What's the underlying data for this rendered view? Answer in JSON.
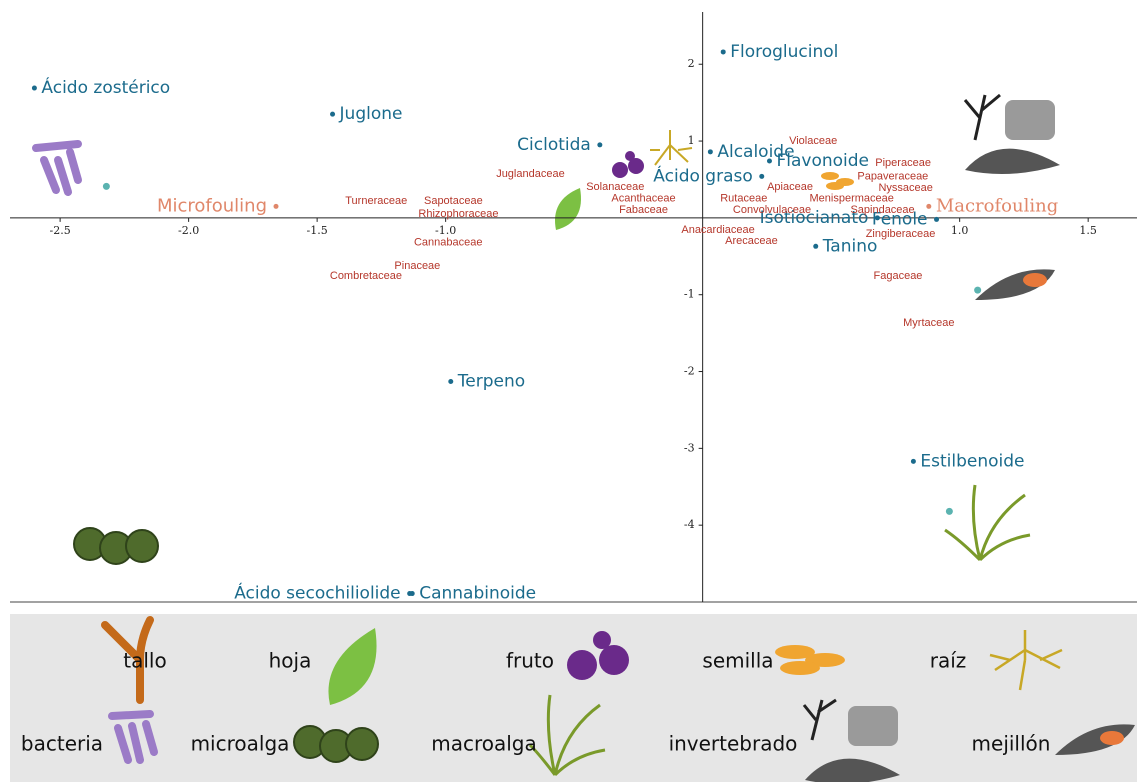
{
  "chart_data": {
    "type": "scatter",
    "xlim": [
      -2.695,
      1.69
    ],
    "ylim": [
      -5.0,
      2.68
    ],
    "xticks": [
      {
        "value": -2.5,
        "label": "-2.5"
      },
      {
        "value": -2,
        "label": "-2.0"
      },
      {
        "value": -1.5,
        "label": "-1.5"
      },
      {
        "value": -1,
        "label": "-1.0"
      },
      {
        "value": 1,
        "label": "1.0"
      },
      {
        "value": 1.5,
        "label": "1.5"
      }
    ],
    "yticks": [
      2,
      1,
      -1,
      -2,
      -3,
      -4
    ],
    "series": [
      {
        "color": "#1b6b8c",
        "labels": [
          "Ácido zostérico",
          "Floroglucinol",
          "Juglone",
          "Ciclotida",
          "Alcaloide",
          "Flavonoide",
          "Ácido graso",
          "Isotiocianato",
          "Fenole",
          "Tanino",
          "Terpeno",
          "Estilbenoide",
          "Cannabinoide",
          "Ácido secochiliolide"
        ],
        "x": [
          -2.6,
          0.08,
          -1.44,
          -0.4,
          0.03,
          0.26,
          0.23,
          0.68,
          0.91,
          0.44,
          -0.98,
          0.82,
          -1.13,
          -1.14
        ],
        "values": [
          1.69,
          2.16,
          1.35,
          0.95,
          0.86,
          0.74,
          0.54,
          0.0,
          -0.02,
          -0.37,
          -2.13,
          -3.17,
          -4.89,
          -4.89
        ]
      },
      {
        "color": "#e0876a",
        "labels": [
          "Microfouling",
          "Macrofouling"
        ],
        "x": [
          -1.66,
          0.88
        ],
        "values": [
          0.15,
          0.15
        ]
      },
      {
        "color": "#b5372b",
        "labels": [
          "Violaceae",
          "Juglandaceae",
          "Piperaceae",
          "Solanaceae",
          "Papaveraceae",
          "Acanthaceae",
          "Apiaceae",
          "Nyssaceae",
          "Turneraceae",
          "Sapotaceae",
          "Rutaceae",
          "Menispermaceae",
          "Fabaceae",
          "Convolvulaceae",
          "Sapindaceae",
          "Rhizophoraceae",
          "Anacardiaceae",
          "Zingiberaceae",
          "Cannabaceae",
          "Arecaceae",
          "Pinaceae",
          "Combretaceae",
          "Fagaceae",
          "Myrtaceae"
        ],
        "x": [
          0.43,
          -0.67,
          0.78,
          -0.34,
          0.74,
          -0.23,
          0.34,
          0.79,
          -1.27,
          -0.97,
          0.16,
          0.58,
          -0.23,
          0.27,
          0.7,
          -0.95,
          0.06,
          0.77,
          -0.99,
          0.19,
          -1.11,
          -1.31,
          0.76,
          0.88
        ],
        "values": [
          1.0,
          0.57,
          0.71,
          0.4,
          0.54,
          0.25,
          0.4,
          0.39,
          0.22,
          0.22,
          0.25,
          0.25,
          0.1,
          0.1,
          0.1,
          0.05,
          -0.16,
          -0.21,
          -0.32,
          -0.3,
          -0.63,
          -0.76,
          -0.76,
          -1.37
        ]
      },
      {
        "color": "#5bb3b0",
        "x": [
          -2.32,
          1.07,
          0.96
        ],
        "values": [
          0.41,
          -0.94,
          -3.82
        ]
      }
    ],
    "legend": [
      "tallo",
      "hoja",
      "fruto",
      "semilla",
      "raíz",
      "bacteria",
      "microalga",
      "macroalga",
      "invertebrado",
      "mejillón"
    ]
  }
}
